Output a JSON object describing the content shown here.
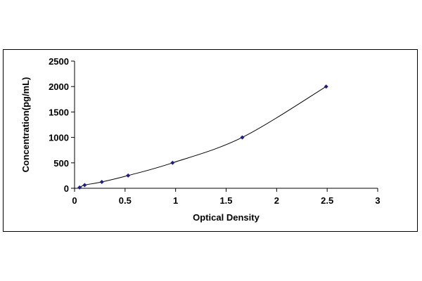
{
  "chart_data": {
    "type": "scatter",
    "title": "",
    "xlabel": "Optical Density",
    "ylabel": "Concentration(pg/mL)",
    "xlim": [
      0,
      3
    ],
    "ylim": [
      0,
      2500
    ],
    "x_ticks": [
      0,
      0.5,
      1,
      1.5,
      2,
      2.5,
      3
    ],
    "y_ticks": [
      0,
      500,
      1000,
      1500,
      2000,
      2500
    ],
    "x_tick_labels": [
      "0",
      "0.5",
      "1",
      "1.5",
      "2",
      "2.5",
      "3"
    ],
    "y_tick_labels": [
      "0",
      "500",
      "1000",
      "1500",
      "2000",
      "2500"
    ],
    "grid": false,
    "legend": "none",
    "trendline": true,
    "series": [
      {
        "x": [
          0.05,
          0.1,
          0.27,
          0.53,
          0.97,
          1.66,
          2.49
        ],
        "y": [
          15.6,
          62.5,
          125,
          250,
          500,
          1000,
          2000
        ],
        "marker": "diamond",
        "color": "#1f1f7a"
      }
    ]
  }
}
